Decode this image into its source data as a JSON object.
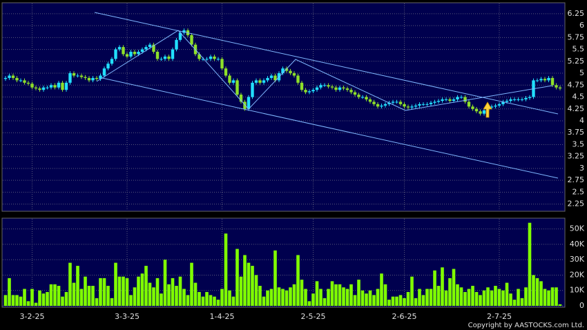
{
  "chart_data": {
    "type": "candlestick",
    "open": [
      4.88,
      4.9,
      4.95,
      4.9,
      4.85,
      4.85,
      4.8,
      4.78,
      4.7,
      4.68,
      4.65,
      4.7,
      4.7,
      4.75,
      4.7,
      4.8,
      4.65,
      4.8,
      5.0,
      4.95,
      4.95,
      4.92,
      4.9,
      4.85,
      4.9,
      4.88,
      4.95,
      5.1,
      5.2,
      5.3,
      5.5,
      5.55,
      5.4,
      5.35,
      5.45,
      5.4,
      5.45,
      5.5,
      5.55,
      5.6,
      5.45,
      5.3,
      5.3,
      5.35,
      5.3,
      5.5,
      5.7,
      5.85,
      5.9,
      5.8,
      5.6,
      5.4,
      5.3,
      5.3,
      5.3,
      5.35,
      5.3,
      5.3,
      5.1,
      4.95,
      4.8,
      4.85,
      4.55,
      4.4,
      4.25,
      4.5,
      4.8,
      4.85,
      4.8,
      4.85,
      4.9,
      4.95,
      4.85,
      5.0,
      5.1,
      5.05,
      5.0,
      4.95,
      4.8,
      4.65,
      4.6,
      4.62,
      4.65,
      4.7,
      4.75,
      4.75,
      4.72,
      4.7,
      4.65,
      4.7,
      4.68,
      4.65,
      4.6,
      4.55,
      4.5,
      4.5,
      4.45,
      4.4,
      4.35,
      4.3,
      4.32,
      4.35,
      4.38,
      4.4,
      4.4,
      4.35,
      4.3,
      4.28,
      4.3,
      4.32,
      4.35,
      4.35,
      4.35,
      4.38,
      4.4,
      4.42,
      4.45,
      4.45,
      4.42,
      4.45,
      4.5,
      4.5,
      4.4,
      4.3,
      4.25,
      4.2,
      4.15,
      4.22,
      4.28,
      4.3,
      4.32,
      4.35,
      4.4,
      4.42,
      4.45,
      4.45,
      4.45,
      4.45,
      4.48,
      4.5,
      4.85,
      4.85,
      4.88,
      4.85,
      4.9,
      4.75,
      4.7
    ],
    "high": [
      4.94,
      4.99,
      4.99,
      4.94,
      4.89,
      4.89,
      4.84,
      4.82,
      4.74,
      4.72,
      4.74,
      4.74,
      4.79,
      4.79,
      4.84,
      4.84,
      4.84,
      5.04,
      5.04,
      4.99,
      4.99,
      4.96,
      4.94,
      4.94,
      4.94,
      4.99,
      5.14,
      5.24,
      5.34,
      5.54,
      5.59,
      5.59,
      5.44,
      5.49,
      5.49,
      5.49,
      5.54,
      5.59,
      5.64,
      5.64,
      5.49,
      5.34,
      5.39,
      5.39,
      5.54,
      5.74,
      5.89,
      5.94,
      5.94,
      5.84,
      5.64,
      5.44,
      5.34,
      5.34,
      5.39,
      5.39,
      5.34,
      5.34,
      5.14,
      4.99,
      4.89,
      4.89,
      4.59,
      4.44,
      4.54,
      4.84,
      4.89,
      4.89,
      4.89,
      4.94,
      4.99,
      4.99,
      5.04,
      5.14,
      5.14,
      5.09,
      5.04,
      4.99,
      4.84,
      4.69,
      4.66,
      4.69,
      4.74,
      4.79,
      4.79,
      4.79,
      4.76,
      4.74,
      4.74,
      4.74,
      4.72,
      4.69,
      4.64,
      4.59,
      4.54,
      4.54,
      4.49,
      4.44,
      4.39,
      4.36,
      4.39,
      4.42,
      4.44,
      4.44,
      4.44,
      4.39,
      4.34,
      4.34,
      4.36,
      4.39,
      4.39,
      4.39,
      4.42,
      4.44,
      4.46,
      4.49,
      4.49,
      4.49,
      4.49,
      4.54,
      4.54,
      4.54,
      4.44,
      4.34,
      4.29,
      4.24,
      4.26,
      4.32,
      4.34,
      4.36,
      4.39,
      4.44,
      4.46,
      4.49,
      4.49,
      4.49,
      4.49,
      4.52,
      4.54,
      4.89,
      4.89,
      4.92,
      4.92,
      4.94,
      4.94,
      4.79,
      4.74
    ],
    "low": [
      4.84,
      4.86,
      4.86,
      4.81,
      4.81,
      4.76,
      4.74,
      4.66,
      4.64,
      4.61,
      4.61,
      4.66,
      4.66,
      4.66,
      4.66,
      4.61,
      4.61,
      4.76,
      4.91,
      4.91,
      4.88,
      4.86,
      4.81,
      4.81,
      4.84,
      4.84,
      4.91,
      5.06,
      5.16,
      5.26,
      5.46,
      5.36,
      5.31,
      5.31,
      5.36,
      5.36,
      5.41,
      5.46,
      5.51,
      5.41,
      5.26,
      5.26,
      5.26,
      5.26,
      5.26,
      5.46,
      5.66,
      5.81,
      5.76,
      5.56,
      5.36,
      5.26,
      5.26,
      5.26,
      5.26,
      5.26,
      5.26,
      5.06,
      4.91,
      4.76,
      4.76,
      4.51,
      4.36,
      4.21,
      4.21,
      4.46,
      4.76,
      4.76,
      4.76,
      4.81,
      4.86,
      4.81,
      4.81,
      4.96,
      5.01,
      4.96,
      4.91,
      4.76,
      4.61,
      4.56,
      4.56,
      4.58,
      4.61,
      4.66,
      4.71,
      4.68,
      4.66,
      4.61,
      4.61,
      4.64,
      4.61,
      4.56,
      4.51,
      4.46,
      4.46,
      4.41,
      4.36,
      4.31,
      4.26,
      4.26,
      4.28,
      4.31,
      4.34,
      4.36,
      4.31,
      4.26,
      4.24,
      4.24,
      4.26,
      4.28,
      4.31,
      4.31,
      4.31,
      4.34,
      4.36,
      4.38,
      4.41,
      4.38,
      4.38,
      4.41,
      4.46,
      4.36,
      4.26,
      4.21,
      4.16,
      4.11,
      4.11,
      4.18,
      4.24,
      4.26,
      4.28,
      4.31,
      4.36,
      4.38,
      4.41,
      4.41,
      4.41,
      4.41,
      4.44,
      4.46,
      4.81,
      4.81,
      4.81,
      4.81,
      4.71,
      4.66,
      4.64
    ],
    "close": [
      4.9,
      4.95,
      4.9,
      4.85,
      4.85,
      4.8,
      4.78,
      4.7,
      4.68,
      4.65,
      4.7,
      4.7,
      4.75,
      4.7,
      4.8,
      4.65,
      4.8,
      5.0,
      4.95,
      4.95,
      4.92,
      4.9,
      4.85,
      4.9,
      4.88,
      4.95,
      5.1,
      5.2,
      5.3,
      5.5,
      5.55,
      5.4,
      5.35,
      5.45,
      5.4,
      5.45,
      5.5,
      5.55,
      5.6,
      5.45,
      5.3,
      5.3,
      5.35,
      5.3,
      5.5,
      5.7,
      5.85,
      5.9,
      5.8,
      5.6,
      5.4,
      5.3,
      5.3,
      5.3,
      5.35,
      5.3,
      5.3,
      5.1,
      4.95,
      4.8,
      4.85,
      4.55,
      4.4,
      4.25,
      4.5,
      4.8,
      4.85,
      4.8,
      4.85,
      4.9,
      4.95,
      4.85,
      5.0,
      5.1,
      5.05,
      5.0,
      4.95,
      4.8,
      4.65,
      4.6,
      4.62,
      4.65,
      4.7,
      4.75,
      4.75,
      4.72,
      4.7,
      4.65,
      4.7,
      4.68,
      4.65,
      4.6,
      4.55,
      4.5,
      4.5,
      4.45,
      4.4,
      4.35,
      4.3,
      4.32,
      4.35,
      4.38,
      4.4,
      4.4,
      4.35,
      4.3,
      4.28,
      4.3,
      4.32,
      4.35,
      4.35,
      4.35,
      4.38,
      4.4,
      4.42,
      4.45,
      4.45,
      4.42,
      4.45,
      4.5,
      4.5,
      4.4,
      4.3,
      4.25,
      4.2,
      4.15,
      4.22,
      4.28,
      4.3,
      4.32,
      4.35,
      4.4,
      4.42,
      4.45,
      4.45,
      4.45,
      4.45,
      4.48,
      4.5,
      4.85,
      4.85,
      4.88,
      4.85,
      4.9,
      4.75,
      4.7,
      4.68
    ],
    "volume": [
      7000,
      18000,
      7000,
      7000,
      6000,
      11000,
      3000,
      11000,
      2000,
      10000,
      8000,
      9000,
      14000,
      14000,
      13000,
      6000,
      9000,
      28000,
      15000,
      26000,
      11000,
      19000,
      13000,
      13000,
      5000,
      18000,
      18000,
      13000,
      5000,
      28000,
      19000,
      19000,
      18000,
      7000,
      12000,
      19000,
      21000,
      26000,
      15000,
      12000,
      18000,
      8000,
      30000,
      14000,
      18000,
      13000,
      19000,
      11000,
      7000,
      28000,
      15000,
      9000,
      6000,
      9000,
      7000,
      6000,
      4000,
      11000,
      47000,
      10000,
      6000,
      37000,
      19000,
      33000,
      28000,
      26000,
      20000,
      13000,
      6000,
      10000,
      11000,
      36000,
      12000,
      11000,
      10000,
      12000,
      14000,
      33000,
      17000,
      11000,
      3000,
      8000,
      16000,
      11000,
      5000,
      11000,
      16000,
      14000,
      14000,
      12000,
      11000,
      14000,
      7000,
      17000,
      10000,
      8000,
      10000,
      7000,
      11000,
      21000,
      14000,
      4000,
      6000,
      6000,
      7000,
      5000,
      9000,
      19000,
      5000,
      11000,
      7000,
      11000,
      11000,
      23000,
      13000,
      25000,
      10000,
      18000,
      24000,
      14000,
      12000,
      9000,
      11000,
      13000,
      9000,
      7000,
      10000,
      12000,
      10000,
      13000,
      11000,
      10000,
      15000,
      8000,
      4000,
      11000,
      5000,
      12000,
      54000,
      20000,
      18000,
      16000,
      11000,
      10000,
      12000,
      12000,
      1000
    ],
    "up_color": "#22e0ff",
    "down_color": "#8ee02a",
    "volume_color": "#80ff00",
    "xlim": [
      -1,
      147
    ],
    "xticks": [
      {
        "value": 7,
        "label": "3-2-25"
      },
      {
        "value": 32,
        "label": "3-3-25"
      },
      {
        "value": 57,
        "label": "1-4-25"
      },
      {
        "value": 81,
        "label": "2-5-25"
      },
      {
        "value": 105,
        "label": "2-6-25"
      },
      {
        "value": 130,
        "label": "2-7-25"
      }
    ],
    "ylim": [
      2.1,
      6.48
    ],
    "yticks": [
      2.25,
      2.5,
      2.75,
      3,
      3.25,
      3.5,
      3.75,
      4,
      4.25,
      4.5,
      4.75,
      5,
      5.25,
      5.5,
      5.75,
      6,
      6.25
    ],
    "y2lim": [
      0,
      57000
    ],
    "y2ticks": [
      0,
      {
        "value": 10000,
        "label": "10K"
      },
      {
        "value": 20000,
        "label": "20K"
      },
      {
        "value": 30000,
        "label": "30K"
      },
      {
        "value": 40000,
        "label": "40K"
      },
      {
        "value": 50000,
        "label": "50K"
      }
    ],
    "grid": true,
    "copyright": "Copyright by AASTOCKS.com Ltd."
  }
}
